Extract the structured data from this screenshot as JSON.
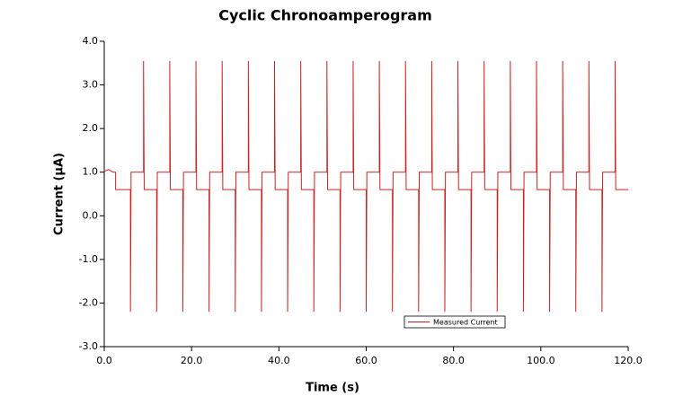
{
  "chart_data": {
    "type": "line",
    "title": "Cyclic Chronoamperogram",
    "x_label": "Time (s)",
    "y_label": "Current (µA)",
    "x": [
      0,
      1,
      2,
      2.6,
      2.6,
      6,
      6,
      6.15,
      9,
      9,
      9.15,
      12,
      12,
      12.15,
      15,
      15,
      15.15,
      18,
      18,
      18.15,
      21,
      21,
      21.15,
      24,
      24,
      24.15,
      27,
      27,
      27.15,
      30,
      30,
      30.15,
      33,
      33,
      33.15,
      36,
      36,
      36.15,
      39,
      39,
      39.15,
      42,
      42,
      42.15,
      45,
      45,
      45.15,
      48,
      48,
      48.15,
      51,
      51,
      51.15,
      54,
      54,
      54.15,
      57,
      57,
      57.15,
      60,
      60,
      60.15,
      63,
      63,
      63.15,
      66,
      66,
      66.15,
      69,
      69,
      69.15,
      72,
      72,
      72.15,
      75,
      75,
      75.15,
      78,
      78,
      78.15,
      81,
      81,
      81.15,
      84,
      84,
      84.15,
      87,
      87,
      87.15,
      90,
      90,
      90.15,
      93,
      93,
      93.15,
      96,
      96,
      96.15,
      99,
      99,
      99.15,
      102,
      102,
      102.15,
      105,
      105,
      105.15,
      108,
      108,
      108.15,
      111,
      111,
      111.15,
      114,
      114,
      114.15,
      117,
      117,
      117.15,
      120
    ],
    "series": [
      {
        "name": "Measured Current",
        "color": "#cc2222",
        "values": [
          1.02,
          1.06,
          1.0,
          1.0,
          0.6,
          0.6,
          -2.2,
          1.0,
          1.0,
          3.55,
          0.6,
          0.6,
          -2.2,
          1.0,
          1.0,
          3.55,
          0.6,
          0.6,
          -2.2,
          1.0,
          1.0,
          3.55,
          0.6,
          0.6,
          -2.2,
          1.0,
          1.0,
          3.55,
          0.6,
          0.6,
          -2.2,
          1.0,
          1.0,
          3.55,
          0.6,
          0.6,
          -2.2,
          1.0,
          1.0,
          3.55,
          0.6,
          0.6,
          -2.2,
          1.0,
          1.0,
          3.55,
          0.6,
          0.6,
          -2.2,
          1.0,
          1.0,
          3.55,
          0.6,
          0.6,
          -2.2,
          1.0,
          1.0,
          3.55,
          0.6,
          0.6,
          -2.2,
          1.0,
          1.0,
          3.55,
          0.6,
          0.6,
          -2.2,
          1.0,
          1.0,
          3.55,
          0.6,
          0.6,
          -2.2,
          1.0,
          1.0,
          3.55,
          0.6,
          0.6,
          -2.2,
          1.0,
          1.0,
          3.55,
          0.6,
          0.6,
          -2.2,
          1.0,
          1.0,
          3.55,
          0.6,
          0.6,
          -2.2,
          1.0,
          1.0,
          3.55,
          0.6,
          0.6,
          -2.2,
          1.0,
          1.0,
          3.55,
          0.6,
          0.6,
          -2.2,
          1.0,
          1.0,
          3.55,
          0.6,
          0.6,
          -2.2,
          1.0,
          1.0,
          3.55,
          0.6,
          0.6,
          -2.2,
          1.0,
          1.0,
          3.55,
          0.6,
          0.6
        ]
      }
    ],
    "xlim": [
      0,
      120
    ],
    "xticks": [
      {
        "value": 0,
        "label": "0.0"
      },
      {
        "value": 20,
        "label": "20.0"
      },
      {
        "value": 40,
        "label": "40.0"
      },
      {
        "value": 60,
        "label": "60.0"
      },
      {
        "value": 80,
        "label": "80.0"
      },
      {
        "value": 100,
        "label": "100.0"
      },
      {
        "value": 120,
        "label": "120.0"
      }
    ],
    "ylim": [
      -3,
      4
    ],
    "yticks": [
      {
        "value": -3,
        "label": "-3.0"
      },
      {
        "value": -2,
        "label": "-2.0"
      },
      {
        "value": -1,
        "label": "-1.0"
      },
      {
        "value": 0,
        "label": "0.0"
      },
      {
        "value": 1,
        "label": "1.0"
      },
      {
        "value": 2,
        "label": "2.0"
      },
      {
        "value": 3,
        "label": "3.0"
      },
      {
        "value": 4,
        "label": "4.0"
      }
    ],
    "grid": false,
    "legend": "lower right"
  }
}
